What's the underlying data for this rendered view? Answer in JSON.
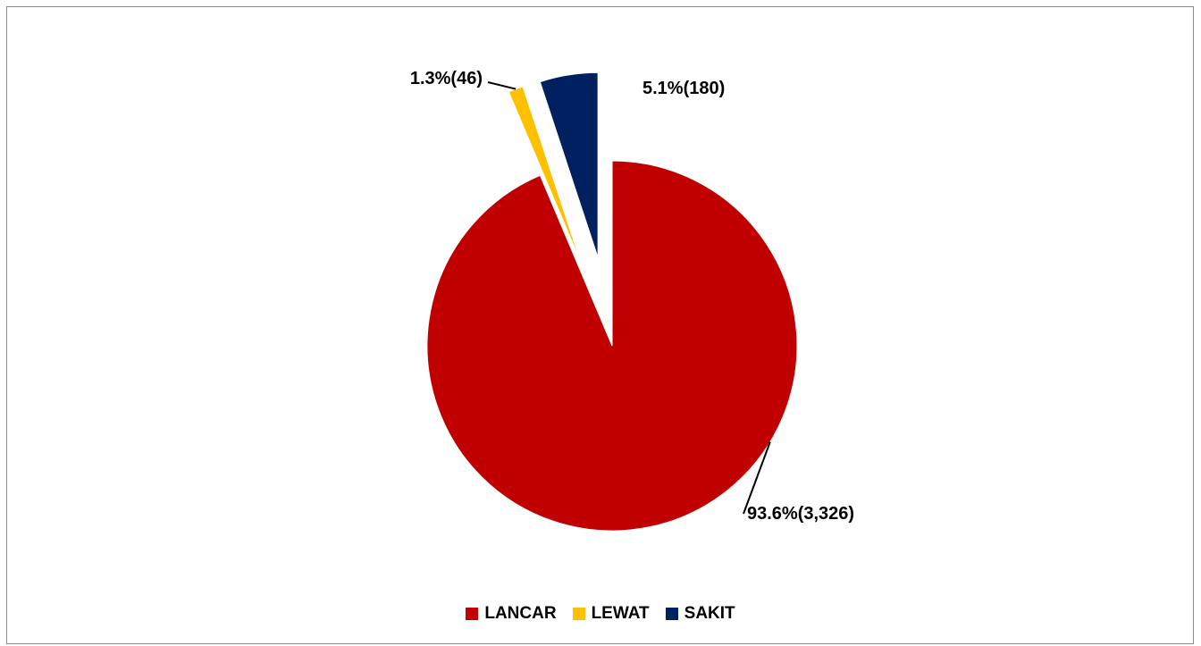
{
  "chart_data": {
    "type": "pie",
    "title": "",
    "start_angle_deg": 0,
    "direction": "clockwise",
    "exploded": [
      "LEWAT",
      "SAKIT"
    ],
    "legend_position": "bottom",
    "slices": [
      {
        "name": "LANCAR",
        "value": 3326,
        "percent": 93.6,
        "label": "93.6%(3,326)",
        "color": "#c00000"
      },
      {
        "name": "LEWAT",
        "value": 46,
        "percent": 1.3,
        "label": "1.3%(46)",
        "color": "#ffc000"
      },
      {
        "name": "SAKIT",
        "value": 180,
        "percent": 5.1,
        "label": "5.1%(180)",
        "color": "#002060"
      }
    ]
  }
}
